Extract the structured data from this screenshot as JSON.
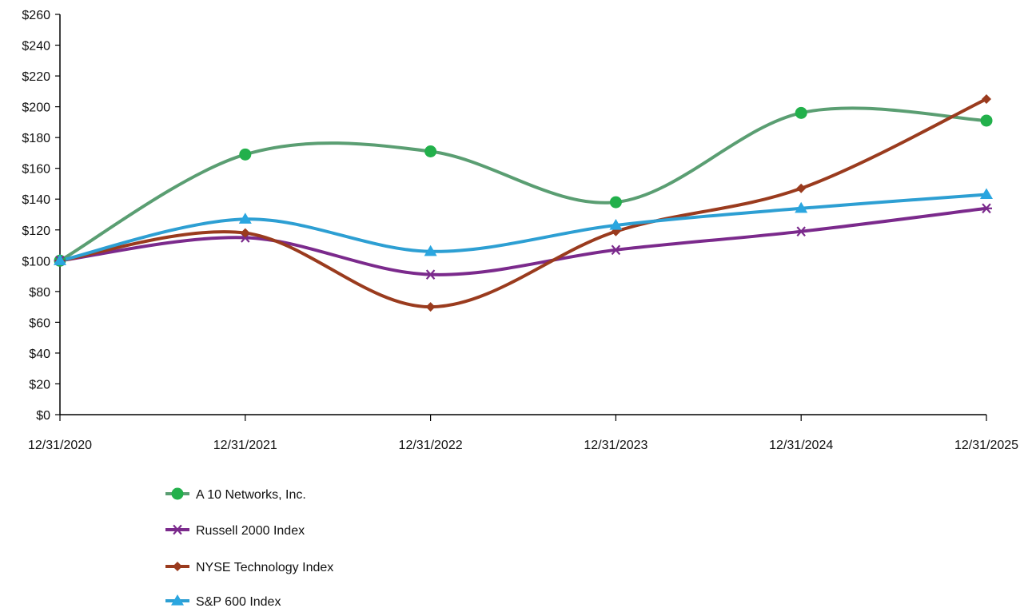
{
  "chart_data": {
    "type": "line",
    "title": "",
    "xlabel": "",
    "ylabel": "",
    "categories": [
      "12/31/2020",
      "12/31/2021",
      "12/31/2022",
      "12/31/2023",
      "12/31/2024",
      "12/31/2025"
    ],
    "ylim": [
      0,
      260
    ],
    "y_ticks": [
      "$0",
      "$20",
      "$40",
      "$60",
      "$80",
      "$100",
      "$120",
      "$140",
      "$160",
      "$180",
      "$200",
      "$220",
      "$240",
      "$260"
    ],
    "grid": false,
    "legend_position": "bottom",
    "series": [
      {
        "name": "A 10 Networks, Inc.",
        "color": "#5a9e72",
        "marker_color": "#22b04b",
        "marker": "circle",
        "values": [
          100,
          169,
          171,
          138,
          196,
          191
        ]
      },
      {
        "name": "Russell 2000 Index",
        "color": "#7b2a8c",
        "marker_color": "#7b2a8c",
        "marker": "asterisk",
        "values": [
          100,
          115,
          91,
          107,
          119,
          134
        ]
      },
      {
        "name": "NYSE Technology Index",
        "color": "#9a3b1e",
        "marker_color": "#9a3b1e",
        "marker": "diamond",
        "values": [
          100,
          118,
          70,
          119,
          147,
          205
        ]
      },
      {
        "name": "S&P 600 Index",
        "color": "#2d9fd3",
        "marker_color": "#2aa6e0",
        "marker": "triangle",
        "values": [
          100,
          127,
          106,
          123,
          134,
          143
        ]
      }
    ]
  }
}
